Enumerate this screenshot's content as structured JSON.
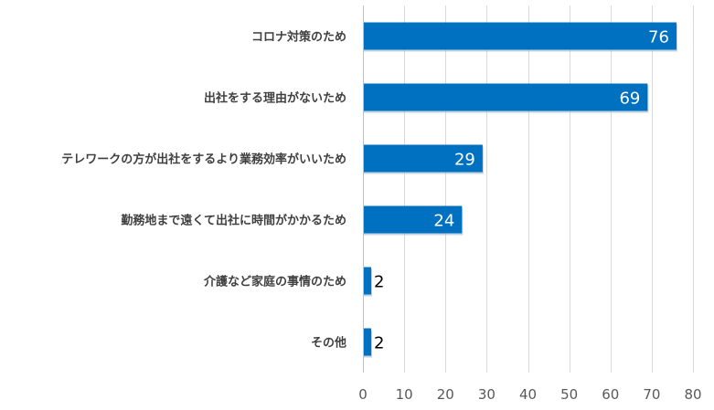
{
  "chart_data": {
    "type": "bar",
    "orientation": "horizontal",
    "categories": [
      "コロナ対策のため",
      "出社をする理由がないため",
      "テレワークの方が出社をするより業務効率がいいため",
      "勤務地まで遠くて出社に時間がかかるため",
      "介護など家庭の事情のため",
      "その他"
    ],
    "values": [
      76,
      69,
      29,
      24,
      2,
      2
    ],
    "xlim": [
      0,
      80
    ],
    "xticks": [
      0,
      10,
      20,
      30,
      40,
      50,
      60,
      70,
      80
    ],
    "grid": true,
    "bar_color": "#0070c0",
    "title": "",
    "xlabel": "",
    "ylabel": ""
  }
}
